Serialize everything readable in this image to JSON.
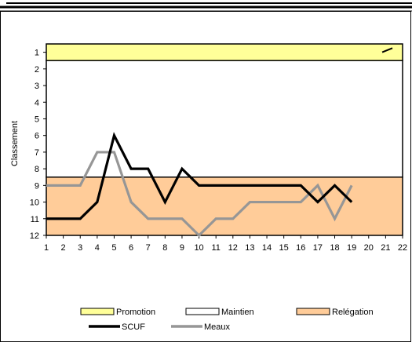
{
  "chart_data": {
    "type": "line",
    "ylabel": "Classement",
    "x": [
      1,
      2,
      3,
      4,
      5,
      6,
      7,
      8,
      9,
      10,
      11,
      12,
      13,
      14,
      15,
      16,
      17,
      18,
      19,
      20,
      21,
      22
    ],
    "y_ticks": [
      1,
      2,
      3,
      4,
      5,
      6,
      7,
      8,
      9,
      10,
      11,
      12
    ],
    "ylim": [
      12,
      1
    ],
    "y_inverted": true,
    "xlim": [
      1,
      22
    ],
    "bands": [
      {
        "name": "Promotion",
        "from": 0.5,
        "to": 1.5,
        "color": "#ffff99"
      },
      {
        "name": "Maintien",
        "from": 1.5,
        "to": 8.5,
        "color": "#ffffff"
      },
      {
        "name": "Relégation",
        "from": 8.5,
        "to": 12,
        "color": "#ffcc99"
      }
    ],
    "series": [
      {
        "name": "SCUF",
        "color": "#000000",
        "points": [
          [
            1,
            11
          ],
          [
            2,
            11
          ],
          [
            3,
            11
          ],
          [
            4,
            10
          ],
          [
            5,
            6
          ],
          [
            6,
            8
          ],
          [
            7,
            8
          ],
          [
            8,
            10
          ],
          [
            9,
            8
          ],
          [
            10,
            9
          ],
          [
            11,
            9
          ],
          [
            12,
            9
          ],
          [
            13,
            9
          ],
          [
            14,
            9
          ],
          [
            15,
            9
          ],
          [
            16,
            9
          ],
          [
            17,
            10
          ],
          [
            18,
            9
          ],
          [
            19,
            10
          ]
        ]
      },
      {
        "name": "Meaux",
        "color": "#969696",
        "points": [
          [
            1,
            9
          ],
          [
            2,
            9
          ],
          [
            3,
            9
          ],
          [
            4,
            7
          ],
          [
            5,
            7
          ],
          [
            6,
            10
          ],
          [
            7,
            11
          ],
          [
            8,
            11
          ],
          [
            9,
            11
          ],
          [
            10,
            12
          ],
          [
            11,
            11
          ],
          [
            12,
            11
          ],
          [
            13,
            10
          ],
          [
            14,
            10
          ],
          [
            15,
            10
          ],
          [
            16,
            10
          ],
          [
            17,
            9
          ],
          [
            18,
            11
          ],
          [
            19,
            9
          ]
        ]
      }
    ],
    "legend": {
      "row1": [
        "Promotion",
        "Maintien",
        "Relégation"
      ],
      "row2": [
        "SCUF",
        "Meaux"
      ]
    }
  }
}
